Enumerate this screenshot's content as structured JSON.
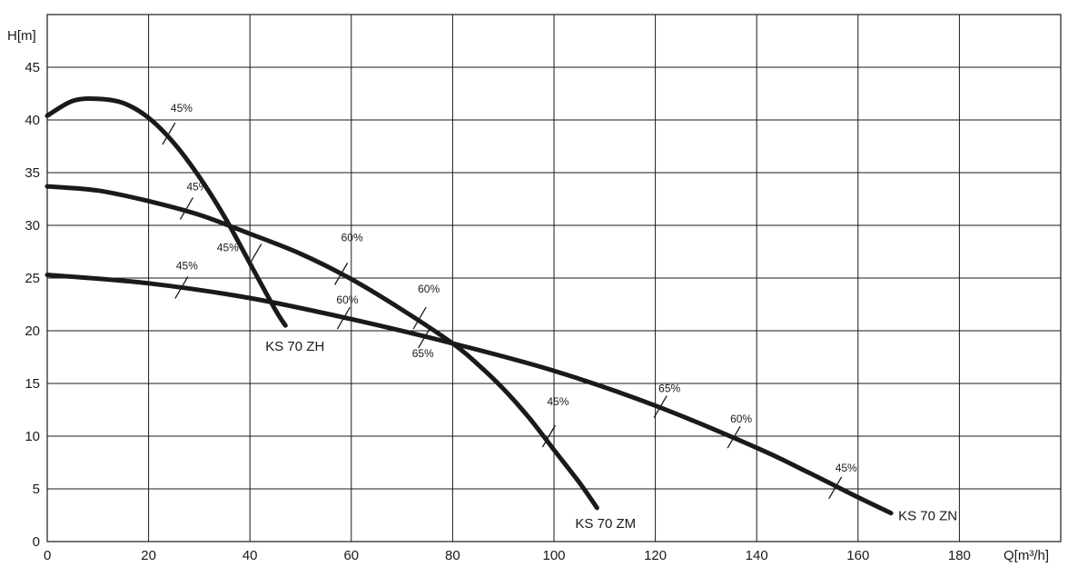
{
  "chart_data": {
    "type": "line",
    "xlabel": "Q[m³/h]",
    "ylabel": "H[m]",
    "xlim": [
      0,
      200
    ],
    "ylim": [
      0,
      50
    ],
    "x_ticks": [
      "0",
      "20",
      "40",
      "60",
      "80",
      "100",
      "120",
      "140",
      "160",
      "180"
    ],
    "y_ticks": [
      "0",
      "5",
      "10",
      "15",
      "20",
      "25",
      "30",
      "35",
      "40",
      "45"
    ],
    "grid": true,
    "series": [
      {
        "name": "KS 70 ZH",
        "x": [
          0,
          5,
          10,
          15,
          20,
          25,
          30,
          35,
          40,
          45,
          47
        ],
        "y": [
          40.4,
          41.8,
          42.0,
          41.6,
          40.2,
          37.8,
          34.6,
          30.8,
          26.4,
          22.0,
          20.5
        ],
        "efficiency_marks": [
          {
            "label": "45%",
            "x": 24,
            "y": 38.7
          },
          {
            "label": "45%",
            "x": 41,
            "y": 27.2
          }
        ]
      },
      {
        "name": "KS 70 ZM",
        "x": [
          0,
          10,
          20,
          30,
          40,
          50,
          60,
          70,
          80,
          85,
          90,
          95,
          100,
          105,
          108.5
        ],
        "y": [
          33.7,
          33.3,
          32.3,
          31.0,
          29.2,
          27.3,
          24.9,
          22.0,
          18.8,
          16.8,
          14.5,
          11.8,
          8.7,
          5.6,
          3.2
        ],
        "efficiency_marks": [
          {
            "label": "45%",
            "x": 27.5,
            "y": 31.6
          },
          {
            "label": "60%",
            "x": 58,
            "y": 25.4
          },
          {
            "label": "60%",
            "x": 73.5,
            "y": 21.2
          },
          {
            "label": "45%",
            "x": 99,
            "y": 10.0
          }
        ]
      },
      {
        "name": "KS 70 ZN",
        "x": [
          0,
          20,
          40,
          60,
          80,
          100,
          120,
          140,
          150,
          160,
          166.5
        ],
        "y": [
          25.3,
          24.5,
          23.1,
          21.1,
          18.8,
          16.2,
          12.9,
          8.9,
          6.6,
          4.2,
          2.7
        ],
        "efficiency_marks": [
          {
            "label": "45%",
            "x": 26.5,
            "y": 24.1
          },
          {
            "label": "60%",
            "x": 58.5,
            "y": 21.2
          },
          {
            "label": "65%",
            "x": 74.5,
            "y": 19.4
          },
          {
            "label": "65%",
            "x": 121,
            "y": 12.8
          },
          {
            "label": "60%",
            "x": 135.5,
            "y": 9.9
          },
          {
            "label": "45%",
            "x": 155.5,
            "y": 5.1
          }
        ]
      }
    ]
  }
}
